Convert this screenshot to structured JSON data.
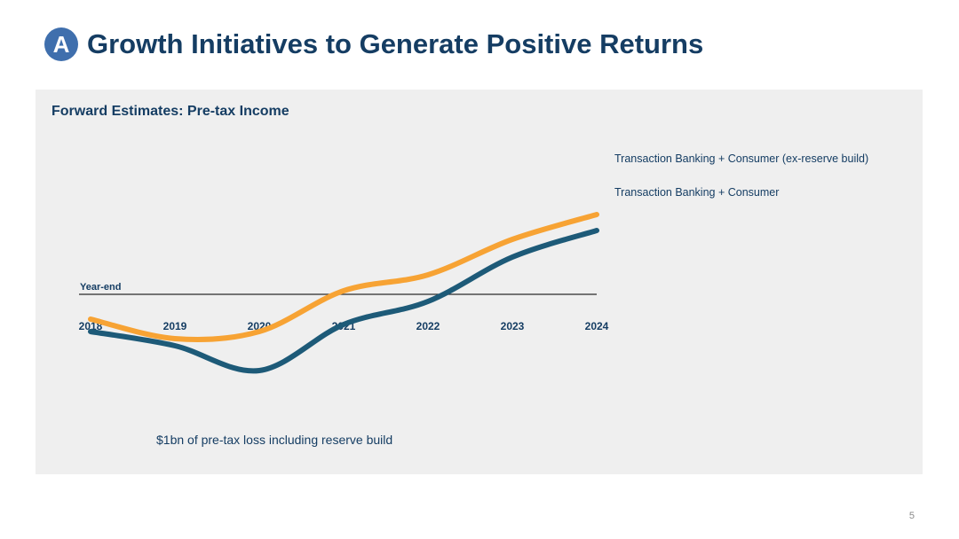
{
  "slide": {
    "badge": "A",
    "title": "Growth Initiatives to Generate Positive Returns",
    "page_number": "5"
  },
  "colors": {
    "navy": "#153d63",
    "orange": "#f7a334",
    "teal": "#1d5a78",
    "panel": "#efefef",
    "badge": "#3f6fad"
  },
  "chart_data": {
    "type": "line",
    "title": "Forward Estimates: Pre-tax Income",
    "x": [
      "2018",
      "2019",
      "2020",
      "2021",
      "2022",
      "2023",
      "2024"
    ],
    "baseline_label": "Year-end",
    "series": [
      {
        "name": "Transaction Banking + Consumer (ex-reserve build)",
        "color": "#f7a334",
        "values": [
          -0.7,
          -1.25,
          -1.05,
          0.1,
          0.55,
          1.55,
          2.25
        ]
      },
      {
        "name": "Transaction Banking + Consumer",
        "color": "#1d5a78",
        "values": [
          -1.05,
          -1.45,
          -2.15,
          -0.85,
          -0.2,
          1.05,
          1.8
        ]
      }
    ],
    "annotation": "$1bn of pre-tax loss including reserve build",
    "ylim": [
      -2.5,
      2.5
    ],
    "y_axis_shown": false,
    "grid": false
  }
}
